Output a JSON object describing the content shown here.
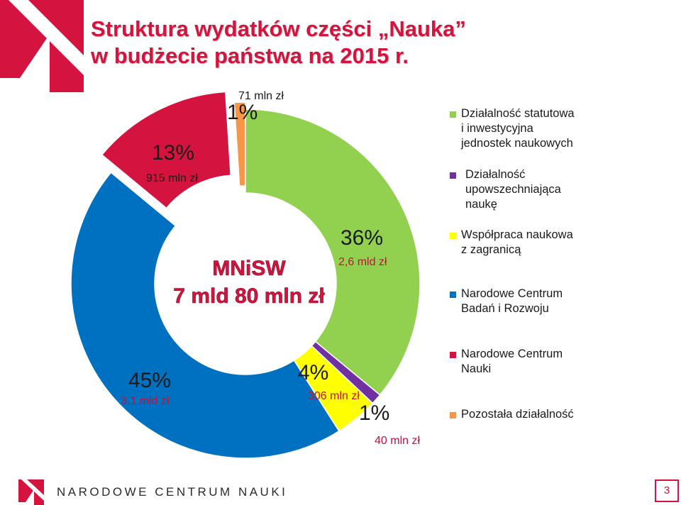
{
  "title_line1": "Struktura wydatków części „Nauka”",
  "title_line2": "w budżecie państwa na 2015 r.",
  "center": {
    "line1": "MNiSW",
    "line2": "7 mld 80 mln zł"
  },
  "colors": {
    "accent": "#d4143f"
  },
  "chart_data": {
    "type": "pie",
    "variant": "donut",
    "unit": "%",
    "slices": [
      {
        "name": "Działalność statutowa i inwestycyjna jednostek naukowych",
        "value": 36,
        "pct_label": "36%",
        "amount_label": "2,6 mld zł",
        "color": "#92d050"
      },
      {
        "name": "Działalność upowszechniająca naukę",
        "value": 1,
        "pct_label": "1%",
        "amount_label": "40 mln zł",
        "color": "#7030a0"
      },
      {
        "name": "Współpraca naukowa z zagranicą",
        "value": 4,
        "pct_label": "4%",
        "amount_label": "306 mln zł",
        "color": "#ffff00"
      },
      {
        "name": "Narodowe Centrum Badań i Rozwoju",
        "value": 45,
        "pct_label": "45%",
        "amount_label": "3,1 mld zł",
        "color": "#0070c0"
      },
      {
        "name": "Narodowe Centrum Nauki",
        "value": 13,
        "pct_label": "13%",
        "amount_label": "915 mln zł",
        "color": "#d4143f"
      },
      {
        "name": "Pozostała działalność",
        "value": 1,
        "pct_label": "1%",
        "amount_label": "71 mln zł",
        "color": "#f79646"
      }
    ]
  },
  "legend": [
    {
      "label_lines": [
        "Działalność statutowa",
        "i inwestycyjna",
        "jednostek naukowych"
      ],
      "color": "#92d050"
    },
    {
      "label_lines": [
        "Działalność",
        "upowszechniająca",
        "naukę"
      ],
      "color": "#7030a0"
    },
    {
      "label_lines": [
        "Współpraca naukowa",
        "z zagranicą"
      ],
      "color": "#ffff00"
    },
    {
      "label_lines": [
        "Narodowe Centrum",
        "Badań i Rozwoju"
      ],
      "color": "#0070c0"
    },
    {
      "label_lines": [
        "Narodowe Centrum",
        "Nauki"
      ],
      "color": "#d4143f"
    },
    {
      "label_lines": [
        "Pozostała działalność"
      ],
      "color": "#f79646"
    }
  ],
  "footer": {
    "org_name": "NARODOWE CENTRUM NAUKI",
    "page_number": "3"
  }
}
